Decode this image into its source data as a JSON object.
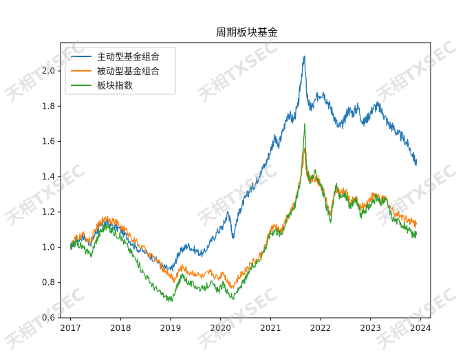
{
  "watermark_text": "天相TXSEC",
  "chart_data": {
    "type": "line",
    "title": "周期板块基金",
    "xlabel": "",
    "ylabel": "",
    "xlim": [
      2016.8,
      2024.2
    ],
    "ylim": [
      0.6,
      2.16
    ],
    "x_ticks": [
      2017,
      2018,
      2019,
      2020,
      2021,
      2022,
      2023,
      2024
    ],
    "x_tick_labels": [
      "2017",
      "2018",
      "2019",
      "2020",
      "2021",
      "2022",
      "2023",
      "2024"
    ],
    "y_ticks": [
      0.6,
      0.8,
      1.0,
      1.2,
      1.4,
      1.6,
      1.8,
      2.0
    ],
    "y_tick_labels": [
      "0.6",
      "0.8",
      "1.0",
      "1.2",
      "1.4",
      "1.6",
      "1.8",
      "2.0"
    ],
    "grid": false,
    "legend_position": "top-left",
    "series": [
      {
        "name": "主动型基金组合",
        "color": "#1f77b4",
        "x": [
          2017.0,
          2017.1,
          2017.25,
          2017.4,
          2017.5,
          2017.6,
          2017.7,
          2017.85,
          2018.0,
          2018.15,
          2018.3,
          2018.5,
          2018.7,
          2018.85,
          2019.0,
          2019.08,
          2019.15,
          2019.25,
          2019.35,
          2019.5,
          2019.65,
          2019.8,
          2019.95,
          2020.05,
          2020.15,
          2020.2,
          2020.25,
          2020.3,
          2020.4,
          2020.5,
          2020.6,
          2020.7,
          2020.8,
          2020.9,
          2021.0,
          2021.08,
          2021.15,
          2021.25,
          2021.35,
          2021.45,
          2021.55,
          2021.62,
          2021.68,
          2021.72,
          2021.78,
          2021.85,
          2021.95,
          2022.05,
          2022.15,
          2022.25,
          2022.35,
          2022.45,
          2022.55,
          2022.65,
          2022.75,
          2022.85,
          2022.95,
          2023.05,
          2023.15,
          2023.25,
          2023.35,
          2023.45,
          2023.55,
          2023.65,
          2023.75,
          2023.85,
          2023.92
        ],
        "values": [
          1.0,
          1.04,
          1.06,
          1.02,
          1.08,
          1.12,
          1.14,
          1.12,
          1.1,
          1.05,
          1.0,
          0.97,
          0.93,
          0.89,
          0.87,
          0.9,
          0.96,
          0.99,
          1.01,
          0.98,
          0.96,
          1.03,
          1.09,
          1.12,
          1.2,
          1.14,
          1.05,
          1.13,
          1.22,
          1.28,
          1.33,
          1.36,
          1.43,
          1.47,
          1.55,
          1.62,
          1.57,
          1.66,
          1.76,
          1.72,
          1.8,
          1.98,
          2.08,
          1.88,
          1.79,
          1.8,
          1.86,
          1.88,
          1.82,
          1.76,
          1.68,
          1.7,
          1.78,
          1.76,
          1.8,
          1.7,
          1.74,
          1.79,
          1.8,
          1.76,
          1.7,
          1.68,
          1.64,
          1.62,
          1.58,
          1.52,
          1.47
        ]
      },
      {
        "name": "被动型基金组合",
        "color": "#ff7f0e",
        "x": [
          2017.0,
          2017.1,
          2017.25,
          2017.4,
          2017.5,
          2017.6,
          2017.7,
          2017.85,
          2018.0,
          2018.15,
          2018.3,
          2018.5,
          2018.7,
          2018.85,
          2019.0,
          2019.08,
          2019.15,
          2019.25,
          2019.35,
          2019.5,
          2019.65,
          2019.8,
          2019.95,
          2020.05,
          2020.15,
          2020.25,
          2020.4,
          2020.5,
          2020.6,
          2020.75,
          2020.9,
          2021.0,
          2021.1,
          2021.2,
          2021.3,
          2021.4,
          2021.5,
          2021.6,
          2021.68,
          2021.72,
          2021.8,
          2021.9,
          2022.0,
          2022.1,
          2022.2,
          2022.3,
          2022.4,
          2022.5,
          2022.6,
          2022.7,
          2022.8,
          2022.9,
          2023.0,
          2023.1,
          2023.2,
          2023.3,
          2023.45,
          2023.6,
          2023.75,
          2023.85,
          2023.92
        ],
        "values": [
          1.0,
          1.05,
          1.07,
          1.03,
          1.1,
          1.14,
          1.17,
          1.15,
          1.12,
          1.08,
          1.03,
          0.98,
          0.93,
          0.88,
          0.84,
          0.81,
          0.86,
          0.89,
          0.86,
          0.85,
          0.83,
          0.86,
          0.82,
          0.86,
          0.8,
          0.78,
          0.84,
          0.87,
          0.91,
          0.93,
          1.01,
          1.1,
          1.12,
          1.08,
          1.15,
          1.2,
          1.26,
          1.4,
          1.55,
          1.42,
          1.38,
          1.4,
          1.36,
          1.28,
          1.18,
          1.34,
          1.3,
          1.32,
          1.25,
          1.28,
          1.22,
          1.24,
          1.28,
          1.3,
          1.26,
          1.28,
          1.2,
          1.18,
          1.16,
          1.14,
          1.13
        ]
      },
      {
        "name": "板块指数",
        "color": "#2ca02c",
        "x": [
          2017.0,
          2017.1,
          2017.25,
          2017.4,
          2017.5,
          2017.6,
          2017.7,
          2017.85,
          2018.0,
          2018.15,
          2018.3,
          2018.45,
          2018.6,
          2018.75,
          2018.9,
          2019.0,
          2019.08,
          2019.15,
          2019.25,
          2019.35,
          2019.5,
          2019.65,
          2019.8,
          2019.95,
          2020.05,
          2020.15,
          2020.25,
          2020.4,
          2020.5,
          2020.6,
          2020.75,
          2020.9,
          2021.0,
          2021.1,
          2021.2,
          2021.3,
          2021.4,
          2021.5,
          2021.6,
          2021.68,
          2021.72,
          2021.8,
          2021.9,
          2022.0,
          2022.1,
          2022.2,
          2022.3,
          2022.4,
          2022.5,
          2022.6,
          2022.7,
          2022.8,
          2022.9,
          2023.0,
          2023.1,
          2023.2,
          2023.3,
          2023.45,
          2023.6,
          2023.75,
          2023.85,
          2023.92
        ],
        "values": [
          0.99,
          1.03,
          1.0,
          0.95,
          1.03,
          1.09,
          1.12,
          1.09,
          1.06,
          1.0,
          0.93,
          0.86,
          0.8,
          0.75,
          0.72,
          0.7,
          0.73,
          0.8,
          0.84,
          0.8,
          0.78,
          0.76,
          0.8,
          0.75,
          0.79,
          0.74,
          0.71,
          0.78,
          0.82,
          0.88,
          0.92,
          1.0,
          1.08,
          1.1,
          1.07,
          1.14,
          1.2,
          1.25,
          1.38,
          1.7,
          1.44,
          1.38,
          1.42,
          1.36,
          1.25,
          1.14,
          1.35,
          1.28,
          1.3,
          1.22,
          1.28,
          1.18,
          1.21,
          1.24,
          1.28,
          1.25,
          1.27,
          1.16,
          1.14,
          1.1,
          1.07,
          1.07
        ]
      }
    ]
  }
}
